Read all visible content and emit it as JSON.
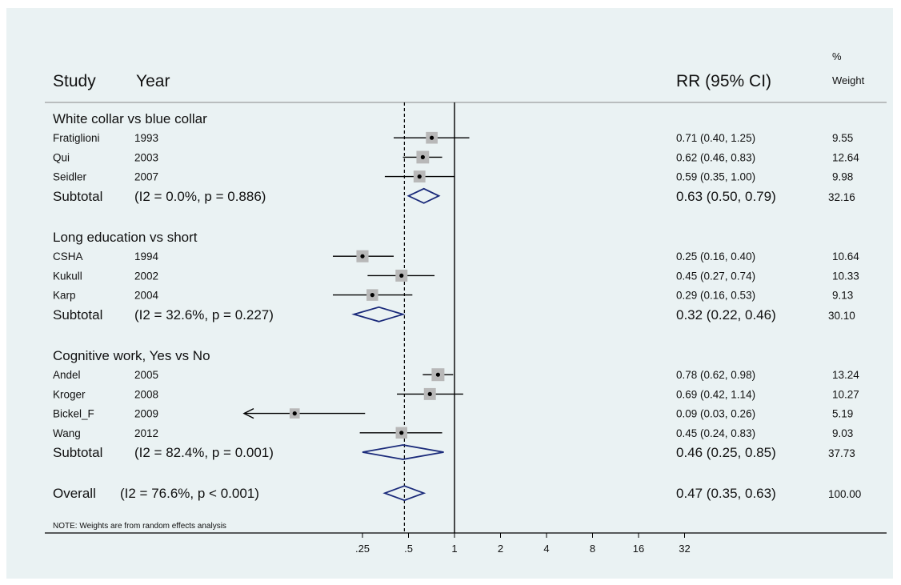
{
  "chart_data": {
    "type": "forest",
    "scale": "log",
    "xticks": [
      0.25,
      0.5,
      1,
      2,
      4,
      8,
      16,
      32
    ],
    "xtick_labels": [
      ".25",
      ".5",
      "1",
      "2",
      "4",
      "8",
      "16",
      "32"
    ],
    "null_line": 1,
    "overall_line": 0.47,
    "headers": {
      "study": "Study",
      "year": "Year",
      "effect": "RR (95% CI)",
      "weight_top": "%",
      "weight_bottom": "Weight"
    },
    "groups": [
      {
        "label": "White collar vs blue collar",
        "studies": [
          {
            "study": "Fratiglioni",
            "year": "1993",
            "rr": 0.71,
            "lo": 0.4,
            "hi": 1.25,
            "ci_text": "0.71 (0.40, 1.25)",
            "weight": 9.55,
            "weight_text": "9.55"
          },
          {
            "study": "Qui",
            "year": "2003",
            "rr": 0.62,
            "lo": 0.46,
            "hi": 0.83,
            "ci_text": "0.62 (0.46, 0.83)",
            "weight": 12.64,
            "weight_text": "12.64"
          },
          {
            "study": "Seidler",
            "year": "2007",
            "rr": 0.59,
            "lo": 0.35,
            "hi": 1.0,
            "ci_text": "0.59 (0.35, 1.00)",
            "weight": 9.98,
            "weight_text": "9.98"
          }
        ],
        "subtotal": {
          "label": "Subtotal",
          "stats": "(I2 = 0.0%, p = 0.886)",
          "rr": 0.63,
          "lo": 0.5,
          "hi": 0.79,
          "ci_text": "0.63 (0.50, 0.79)",
          "weight_text": "32.16"
        }
      },
      {
        "label": "Long education vs short",
        "studies": [
          {
            "study": "CSHA",
            "year": "1994",
            "rr": 0.25,
            "lo": 0.16,
            "hi": 0.4,
            "ci_text": "0.25 (0.16, 0.40)",
            "weight": 10.64,
            "weight_text": "10.64"
          },
          {
            "study": "Kukull",
            "year": "2002",
            "rr": 0.45,
            "lo": 0.27,
            "hi": 0.74,
            "ci_text": "0.45 (0.27, 0.74)",
            "weight": 10.33,
            "weight_text": "10.33"
          },
          {
            "study": "Karp",
            "year": "2004",
            "rr": 0.29,
            "lo": 0.16,
            "hi": 0.53,
            "ci_text": "0.29 (0.16, 0.53)",
            "weight": 9.13,
            "weight_text": "9.13"
          }
        ],
        "subtotal": {
          "label": "Subtotal",
          "stats": "(I2 = 32.6%, p = 0.227)",
          "rr": 0.32,
          "lo": 0.22,
          "hi": 0.46,
          "ci_text": "0.32 (0.22, 0.46)",
          "weight_text": "30.10"
        }
      },
      {
        "label": "Cognitive work, Yes vs No",
        "studies": [
          {
            "study": "Andel",
            "year": "2005",
            "rr": 0.78,
            "lo": 0.62,
            "hi": 0.98,
            "ci_text": "0.78 (0.62, 0.98)",
            "weight": 13.24,
            "weight_text": "13.24"
          },
          {
            "study": "Kroger",
            "year": "2008",
            "rr": 0.69,
            "lo": 0.42,
            "hi": 1.14,
            "ci_text": "0.69 (0.42, 1.14)",
            "weight": 10.27,
            "weight_text": "10.27"
          },
          {
            "study": "Bickel_F",
            "year": "2009",
            "rr": 0.09,
            "lo": 0.03,
            "hi": 0.26,
            "ci_text": "0.09 (0.03, 0.26)",
            "weight": 5.19,
            "weight_text": "5.19",
            "lower_truncated": true
          },
          {
            "study": "Wang",
            "year": "2012",
            "rr": 0.45,
            "lo": 0.24,
            "hi": 0.83,
            "ci_text": "0.45 (0.24, 0.83)",
            "weight": 9.03,
            "weight_text": "9.03"
          }
        ],
        "subtotal": {
          "label": "Subtotal",
          "stats": "(I2 = 82.4%, p = 0.001)",
          "rr": 0.46,
          "lo": 0.25,
          "hi": 0.85,
          "ci_text": "0.46 (0.25, 0.85)",
          "weight_text": "37.73"
        }
      }
    ],
    "overall": {
      "label": "Overall",
      "stats": "(I2 = 76.6%, p < 0.001)",
      "rr": 0.47,
      "lo": 0.35,
      "hi": 0.63,
      "ci_text": "0.47 (0.35, 0.63)",
      "weight_text": "100.00"
    },
    "note": "NOTE: Weights are from random effects analysis",
    "colors": {
      "background": "#eaf2f3",
      "diamond": "#1a2a7a",
      "box": "#b8b8b8",
      "line": "#000000"
    }
  }
}
